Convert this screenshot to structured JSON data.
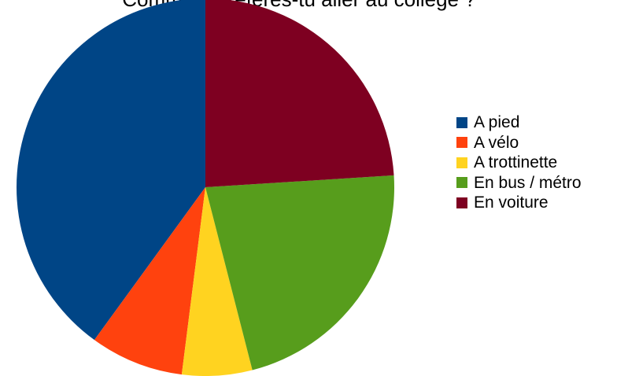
{
  "chart_data": {
    "type": "pie",
    "title": "Comment préfères-tu aller au collège ?",
    "categories": [
      "A pied",
      "A vélo",
      "A trottinette",
      "En bus / métro",
      "En voiture"
    ],
    "values": [
      10,
      2,
      1.5,
      5.5,
      6
    ],
    "colors": [
      "#004586",
      "#ff420e",
      "#ffd320",
      "#579d1c",
      "#7e0021"
    ],
    "legend_position": "right"
  }
}
